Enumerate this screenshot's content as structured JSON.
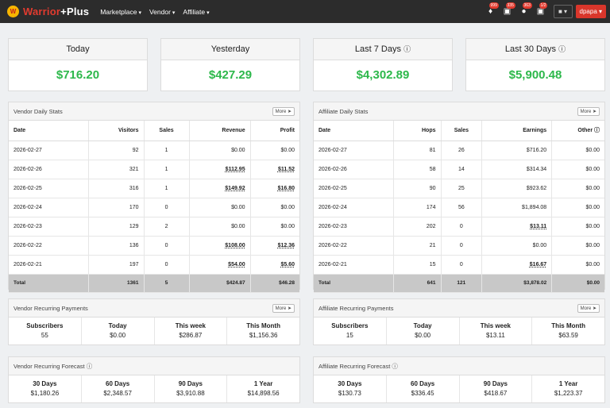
{
  "nav": {
    "brand_a": "Warrior",
    "brand_b": "+Plus",
    "logo": "W",
    "menu": [
      "Marketplace",
      "Vendor",
      "Affiliate"
    ],
    "badges": [
      "999",
      "335",
      "363",
      "1/2"
    ],
    "user": "dpapa ▾"
  },
  "kpis": [
    {
      "label": "Today",
      "value": "$716.20",
      "info": false
    },
    {
      "label": "Yesterday",
      "value": "$427.29",
      "info": false
    },
    {
      "label": "Last 7 Days",
      "value": "$4,302.89",
      "info": true
    },
    {
      "label": "Last 30 Days",
      "value": "$5,900.48",
      "info": true
    }
  ],
  "more_label": "More",
  "vendor": {
    "title": "Vendor Daily Stats",
    "cols": [
      "Date",
      "Visitors",
      "Sales",
      "Revenue",
      "Profit"
    ],
    "rows": [
      [
        "2026-02-27",
        "92",
        "1",
        "$0.00",
        "$0.00"
      ],
      [
        "2026-02-26",
        "321",
        "1",
        "$112.95",
        "$11.52"
      ],
      [
        "2026-02-25",
        "316",
        "1",
        "$149.92",
        "$16.80"
      ],
      [
        "2026-02-24",
        "170",
        "0",
        "$0.00",
        "$0.00"
      ],
      [
        "2026-02-23",
        "129",
        "2",
        "$0.00",
        "$0.00"
      ],
      [
        "2026-02-22",
        "136",
        "0",
        "$108.00",
        "$12.36"
      ],
      [
        "2026-02-21",
        "197",
        "0",
        "$54.00",
        "$5.60"
      ]
    ],
    "total": [
      "Total",
      "1361",
      "5",
      "$424.87",
      "$46.28"
    ]
  },
  "affiliate": {
    "title": "Affiliate Daily Stats",
    "cols": [
      "Date",
      "Hops",
      "Sales",
      "Earnings",
      "Other"
    ],
    "rows": [
      [
        "2026-02-27",
        "81",
        "26",
        "$716.20",
        "$0.00"
      ],
      [
        "2026-02-26",
        "58",
        "14",
        "$314.34",
        "$0.00"
      ],
      [
        "2026-02-25",
        "90",
        "25",
        "$923.62",
        "$0.00"
      ],
      [
        "2026-02-24",
        "174",
        "56",
        "$1,894.08",
        "$0.00"
      ],
      [
        "2026-02-23",
        "202",
        "0",
        "$13.11",
        "$0.00"
      ],
      [
        "2026-02-22",
        "21",
        "0",
        "$0.00",
        "$0.00"
      ],
      [
        "2026-02-21",
        "15",
        "0",
        "$16.67",
        "$0.00"
      ]
    ],
    "total": [
      "Total",
      "641",
      "121",
      "$3,878.02",
      "$0.00"
    ]
  },
  "vrec": {
    "title": "Vendor Recurring Payments",
    "cols": [
      "Subscribers",
      "Today",
      "This week",
      "This Month"
    ],
    "vals": [
      "55",
      "$0.00",
      "$286.87",
      "$1,156.36"
    ]
  },
  "arec": {
    "title": "Affiliate Recurring Payments",
    "cols": [
      "Subscribers",
      "Today",
      "This week",
      "This Month"
    ],
    "vals": [
      "15",
      "$0.00",
      "$13.11",
      "$63.59"
    ]
  },
  "vfc": {
    "title": "Vendor Recurring Forecast",
    "cols": [
      "30 Days",
      "60 Days",
      "90 Days",
      "1 Year"
    ],
    "vals": [
      "$1,180.26",
      "$2,348.57",
      "$3,910.88",
      "$14,898.56"
    ]
  },
  "afc": {
    "title": "Affiliate Recurring Forecast",
    "cols": [
      "30 Days",
      "60 Days",
      "90 Days",
      "1 Year"
    ],
    "vals": [
      "$130.73",
      "$336.45",
      "$418.67",
      "$1,223.37"
    ]
  }
}
